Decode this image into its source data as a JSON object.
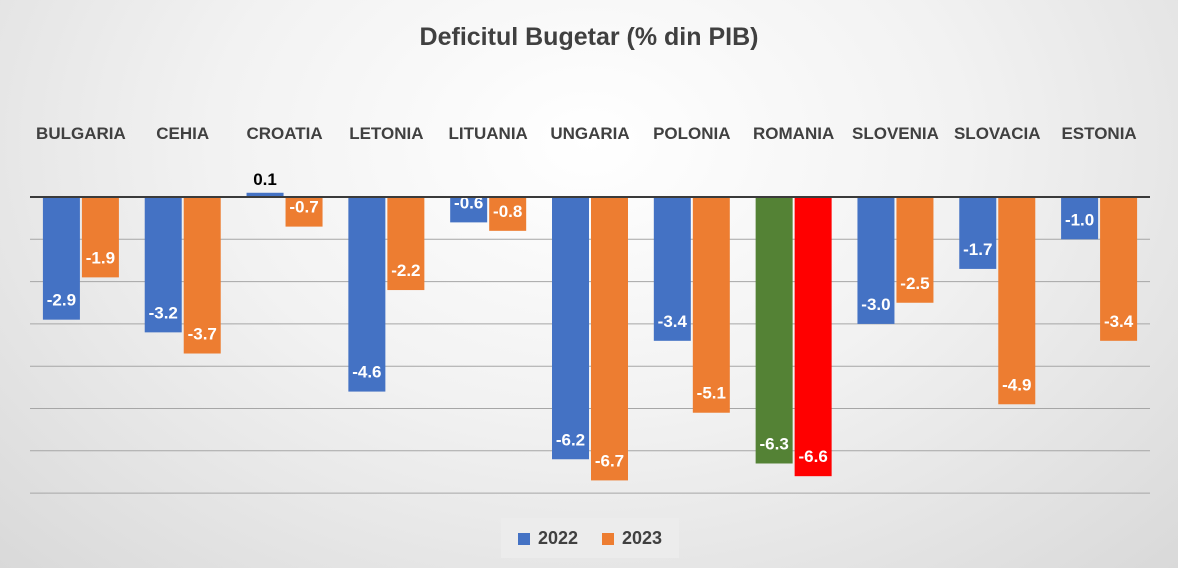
{
  "chart_data": {
    "type": "bar",
    "title": "Deficitul Bugetar (% din PIB)",
    "categories": [
      "BULGARIA",
      "CEHIA",
      "CROATIA",
      "LETONIA",
      "LITUANIA",
      "UNGARIA",
      "POLONIA",
      "ROMANIA",
      "SLOVENIA",
      "SLOVACIA",
      "ESTONIA"
    ],
    "series": [
      {
        "name": "2022",
        "color": "#4472C4",
        "values": [
          -2.9,
          -3.2,
          0.1,
          -4.6,
          -0.6,
          -6.2,
          -3.4,
          -6.3,
          -3.0,
          -1.7,
          -1.0
        ],
        "labels": [
          "-2.9",
          "-3.2",
          "0.1",
          "-4.6",
          "-0.6",
          "-6.2",
          "-3.4",
          "-6.3",
          "-3.0",
          "-1.7",
          "-1.0"
        ]
      },
      {
        "name": "2023",
        "color": "#ED7D31",
        "values": [
          -1.9,
          -3.7,
          -0.7,
          -2.2,
          -0.8,
          -6.7,
          -5.1,
          -6.6,
          -2.5,
          -4.9,
          -3.4
        ],
        "labels": [
          "-1.9",
          "-3.7",
          "-0.7",
          "-2.2",
          "-0.8",
          "-6.7",
          "-5.1",
          "-6.6",
          "-2.5",
          "-4.9",
          "-3.4"
        ]
      }
    ],
    "highlight": {
      "category": "ROMANIA",
      "colors": {
        "2022": "#548235",
        "2023": "#FF0000"
      }
    },
    "ylim": [
      -7,
      1
    ],
    "grid": true,
    "legend_position": "bottom"
  }
}
